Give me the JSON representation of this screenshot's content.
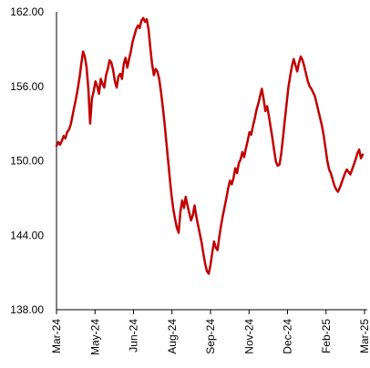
{
  "chart_data": {
    "type": "line",
    "title": "",
    "xlabel": "",
    "ylabel": "",
    "ylim": [
      138,
      162
    ],
    "yticks": [
      "162.00",
      "156.00",
      "150.00",
      "144.00",
      "138.00"
    ],
    "ytick_values": [
      162,
      156,
      150,
      144,
      138
    ],
    "xticks": [
      "Mar-24",
      "May-24",
      "Jun-24",
      "Aug-24",
      "Sep-24",
      "Nov-24",
      "Dec-24",
      "Feb-25",
      "Mar-25"
    ],
    "grid": false,
    "series_color": "#C00000",
    "series": [
      {
        "values": [
          151.2,
          151.5,
          151.3,
          151.6,
          152.0,
          151.8,
          152.3,
          152.5,
          152.9,
          153.6,
          154.3,
          155.0,
          155.8,
          156.7,
          157.8,
          158.8,
          158.4,
          157.5,
          155.8,
          153.0,
          155.0,
          155.6,
          156.4,
          156.0,
          155.4,
          156.6,
          156.2,
          155.9,
          156.9,
          157.4,
          158.1,
          157.9,
          157.3,
          156.4,
          155.9,
          156.8,
          157.0,
          156.6,
          157.8,
          158.3,
          157.5,
          158.2,
          158.8,
          159.6,
          160.1,
          160.6,
          160.9,
          160.7,
          161.3,
          161.5,
          161.2,
          161.4,
          160.6,
          159.1,
          157.8,
          156.9,
          157.4,
          157.2,
          156.6,
          155.6,
          154.4,
          153.1,
          151.6,
          150.1,
          148.6,
          147.2,
          146.1,
          145.3,
          144.6,
          144.2,
          145.9,
          146.8,
          146.2,
          147.1,
          146.4,
          145.8,
          145.2,
          145.6,
          146.4,
          145.5,
          144.8,
          144.1,
          143.4,
          142.5,
          141.7,
          141.1,
          140.9,
          141.6,
          142.6,
          143.5,
          143.0,
          142.8,
          143.9,
          144.8,
          145.6,
          146.3,
          147.0,
          147.8,
          148.4,
          148.1,
          148.6,
          149.4,
          149.0,
          149.8,
          150.1,
          150.7,
          150.3,
          151.0,
          151.6,
          152.3,
          152.1,
          152.8,
          153.4,
          154.1,
          154.6,
          155.2,
          155.8,
          155.0,
          154.0,
          154.4,
          153.6,
          152.7,
          151.8,
          150.8,
          149.9,
          149.6,
          149.7,
          150.6,
          151.9,
          153.3,
          154.6,
          155.9,
          156.8,
          157.6,
          158.2,
          157.7,
          157.2,
          157.9,
          158.4,
          158.1,
          157.6,
          157.0,
          156.4,
          156.0,
          155.8,
          155.5,
          155.2,
          154.6,
          154.0,
          153.4,
          152.8,
          152.0,
          151.0,
          150.0,
          149.3,
          149.0,
          148.5,
          148.0,
          147.7,
          147.5,
          147.8,
          148.2,
          148.6,
          149.0,
          149.3,
          149.1,
          148.9,
          149.3,
          149.7,
          150.1,
          150.6,
          150.9,
          150.2,
          150.5
        ]
      }
    ]
  }
}
